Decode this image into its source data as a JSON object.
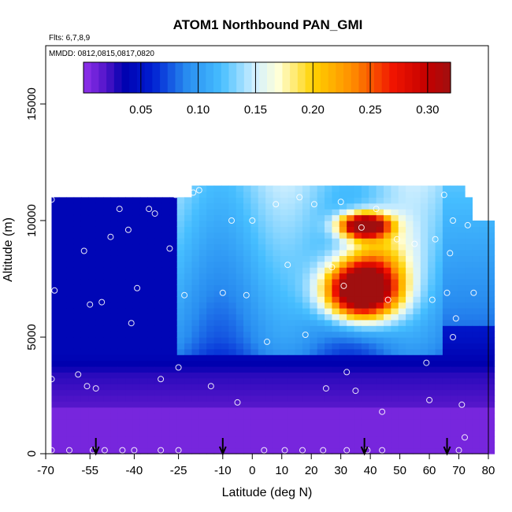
{
  "chart_data": {
    "type": "heatmap",
    "title": "ATOM1 Northbound PAN_GMI",
    "subtitle_flights": "Flts: 6,7,8,9",
    "subtitle_dates": "MMDD: 0812,0815,0817,0820",
    "xlabel": "Latitude (deg N)",
    "ylabel": "Altitude (m)",
    "xlim": [
      -70,
      80
    ],
    "ylim": [
      0,
      17500
    ],
    "x_ticks": [
      -70,
      -55,
      -40,
      -25,
      -10,
      0,
      10,
      20,
      30,
      40,
      50,
      60,
      70,
      80
    ],
    "x_tick_labels": [
      "-70",
      "-55",
      "-40",
      "-25",
      "-10",
      "0",
      "10",
      "20",
      "30",
      "40",
      "50",
      "60",
      "70",
      "80"
    ],
    "y_ticks": [
      0,
      5000,
      10000,
      15000
    ],
    "y_tick_labels": [
      "0",
      "5000",
      "10000",
      "15000"
    ],
    "colorbar": {
      "range": [
        0.0,
        0.32
      ],
      "ticks": [
        0.05,
        0.1,
        0.15,
        0.2,
        0.25,
        0.3
      ],
      "tick_labels": [
        "0.05",
        "0.10",
        "0.15",
        "0.20",
        "0.25",
        "0.30"
      ]
    },
    "sample_points": [
      [
        -68,
        10900
      ],
      [
        -67,
        7000
      ],
      [
        -68,
        3200
      ],
      [
        -68,
        150
      ],
      [
        -62,
        150
      ],
      [
        -59,
        3400
      ],
      [
        -57,
        8700
      ],
      [
        -56,
        2900
      ],
      [
        -55,
        6400
      ],
      [
        -54,
        150
      ],
      [
        -53,
        2800
      ],
      [
        -51,
        6500
      ],
      [
        -50,
        150
      ],
      [
        -48,
        9300
      ],
      [
        -44,
        150
      ],
      [
        -45,
        10500
      ],
      [
        -42,
        9600
      ],
      [
        -41,
        5600
      ],
      [
        -40,
        150
      ],
      [
        -39,
        7100
      ],
      [
        -35,
        10500
      ],
      [
        -33,
        10300
      ],
      [
        -31,
        3200
      ],
      [
        -31,
        150
      ],
      [
        -28,
        8800
      ],
      [
        -26,
        11100
      ],
      [
        -25,
        3700
      ],
      [
        -25,
        150
      ],
      [
        -23,
        6800
      ],
      [
        -20,
        11200
      ],
      [
        -18,
        11300
      ],
      [
        -14,
        2900
      ],
      [
        -10,
        6900
      ],
      [
        -7,
        10000
      ],
      [
        -5,
        2200
      ],
      [
        -2,
        6800
      ],
      [
        0,
        10000
      ],
      [
        4,
        150
      ],
      [
        5,
        4800
      ],
      [
        8,
        10700
      ],
      [
        11,
        150
      ],
      [
        12,
        8100
      ],
      [
        16,
        11000
      ],
      [
        17,
        150
      ],
      [
        18,
        5100
      ],
      [
        21,
        10700
      ],
      [
        24,
        150
      ],
      [
        25,
        2800
      ],
      [
        27,
        8000
      ],
      [
        30,
        10800
      ],
      [
        31,
        7200
      ],
      [
        32,
        3500
      ],
      [
        32,
        150
      ],
      [
        35,
        2700
      ],
      [
        37,
        9700
      ],
      [
        39,
        150
      ],
      [
        42,
        10500
      ],
      [
        44,
        1800
      ],
      [
        44,
        150
      ],
      [
        46,
        6600
      ],
      [
        49,
        9200
      ],
      [
        55,
        9000
      ],
      [
        59,
        3900
      ],
      [
        60,
        2300
      ],
      [
        61,
        6600
      ],
      [
        62,
        9200
      ],
      [
        65,
        11100
      ],
      [
        66,
        6900
      ],
      [
        67,
        8600
      ],
      [
        68,
        10000
      ],
      [
        68,
        5000
      ],
      [
        69,
        5800
      ],
      [
        70,
        150
      ],
      [
        71,
        2100
      ],
      [
        72,
        700
      ],
      [
        73,
        9800
      ],
      [
        75,
        6900
      ]
    ],
    "flight_markers_lat": [
      -53,
      -10,
      38,
      66
    ]
  }
}
